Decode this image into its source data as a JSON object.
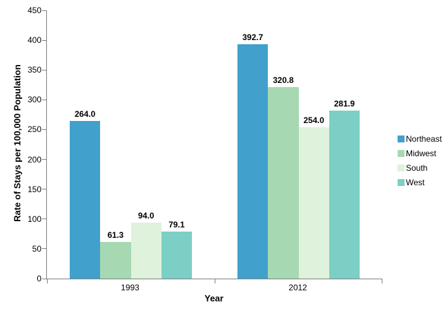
{
  "chart_data": {
    "type": "bar",
    "title": "",
    "xlabel": "Year",
    "ylabel": "Rate of Stays per 100,000 Population",
    "categories": [
      "1993",
      "2012"
    ],
    "series": [
      {
        "name": "Northeast",
        "color": "#42A0CC",
        "values": [
          264.0,
          392.7
        ],
        "labels": [
          "264.0",
          "392.7"
        ]
      },
      {
        "name": "Midwest",
        "color": "#A6D9B2",
        "values": [
          61.3,
          320.8
        ],
        "labels": [
          "61.3",
          "320.8"
        ]
      },
      {
        "name": "South",
        "color": "#DFF2DC",
        "values": [
          94.0,
          254.0
        ],
        "labels": [
          "94.0",
          "254.0"
        ]
      },
      {
        "name": "West",
        "color": "#7CCFC5",
        "values": [
          79.1,
          281.9
        ],
        "labels": [
          "79.1",
          "281.9"
        ]
      }
    ],
    "ylim": [
      0,
      450
    ],
    "ytick_step": 50,
    "grid": false,
    "legend_position": "right",
    "axis_color": "#808080",
    "text_color": "#000000"
  }
}
